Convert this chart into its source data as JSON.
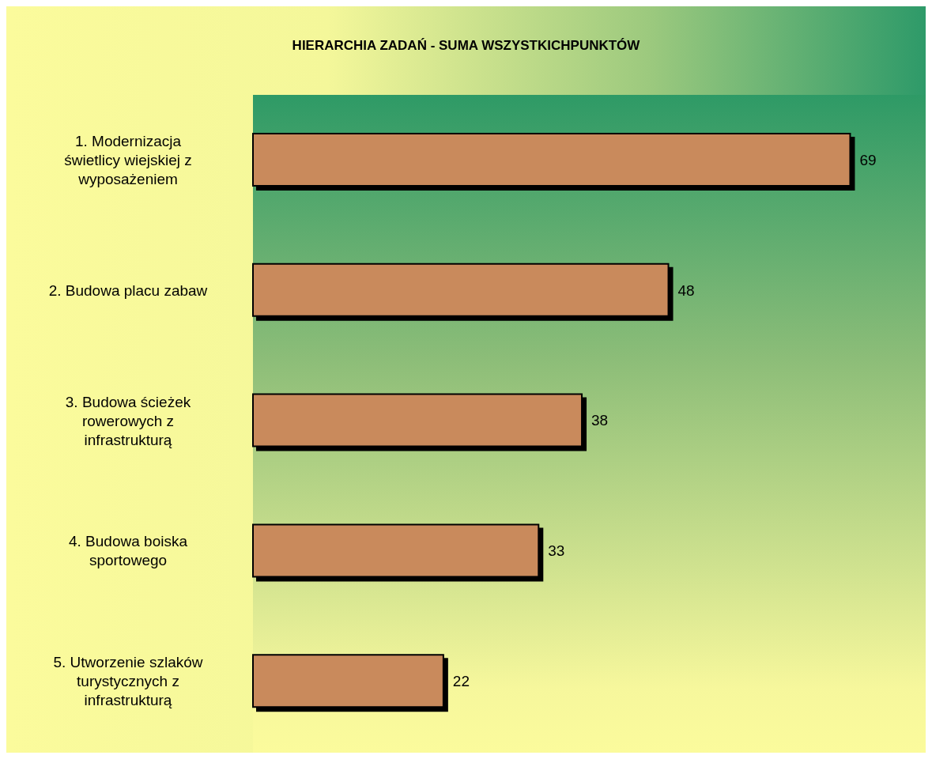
{
  "chart_data": {
    "type": "bar",
    "orientation": "horizontal",
    "title": "HIERARCHIA ZADAŃ - SUMA WSZYSTKICHPUNKTÓW",
    "categories": [
      "1. Modernizacja świetlicy wiejskiej z wyposażeniem",
      "2. Budowa placu zabaw",
      "3. Budowa ścieżek rowerowych z infrastrukturą",
      "4. Budowa boiska sportowego",
      "5. Utworzenie szlaków turystycznych z infrastrukturą"
    ],
    "values": [
      69,
      48,
      38,
      33,
      22
    ],
    "color": "#c98a5c",
    "data_labels": true
  }
}
